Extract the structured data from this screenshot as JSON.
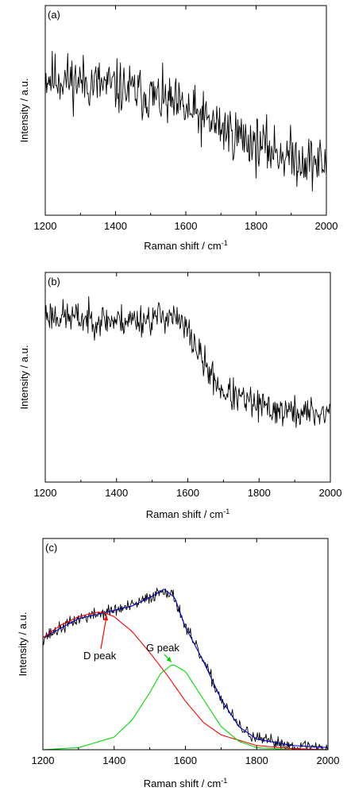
{
  "chart_data": [
    {
      "type": "line",
      "panel_label": "(a)",
      "xlabel": "Raman shift / cm",
      "xlabel_sup": "-1",
      "ylabel": "Intensity / a.u.",
      "xlim": [
        1200,
        2000
      ],
      "ylim": [
        0,
        1
      ],
      "xticks": [
        1200,
        1400,
        1600,
        1800,
        2000
      ],
      "tick_labels": [
        "1200",
        "1400",
        "1600",
        "1800",
        "2000"
      ],
      "series": [
        {
          "color": "#000000",
          "noise": 0.09,
          "seed": 11,
          "x": [
            1200,
            1300,
            1400,
            1500,
            1600,
            1700,
            1800,
            1900,
            2000
          ],
          "y": [
            0.66,
            0.64,
            0.61,
            0.57,
            0.5,
            0.42,
            0.34,
            0.28,
            0.24
          ]
        }
      ]
    },
    {
      "type": "line",
      "panel_label": "(b)",
      "xlabel": "Raman shift / cm",
      "xlabel_sup": "-1",
      "ylabel": "Intensity / a.u.",
      "xlim": [
        1200,
        2000
      ],
      "ylim": [
        0,
        1
      ],
      "xticks": [
        1200,
        1400,
        1600,
        1800,
        2000
      ],
      "tick_labels": [
        "1200",
        "1400",
        "1600",
        "1800",
        "2000"
      ],
      "series": [
        {
          "color": "#000000",
          "noise": 0.055,
          "seed": 23,
          "x": [
            1200,
            1300,
            1400,
            1500,
            1550,
            1600,
            1650,
            1700,
            1800,
            1900,
            2000
          ],
          "y": [
            0.8,
            0.78,
            0.77,
            0.78,
            0.8,
            0.72,
            0.55,
            0.43,
            0.36,
            0.33,
            0.33
          ]
        }
      ]
    },
    {
      "type": "line",
      "panel_label": "(c)",
      "xlabel": "Raman shift / cm",
      "xlabel_sup": "-1",
      "ylabel": "Intensity / a.u.",
      "xlim": [
        1200,
        2000
      ],
      "ylim": [
        0,
        1
      ],
      "xticks": [
        1200,
        1400,
        1600,
        1800,
        2000
      ],
      "tick_labels": [
        "1200",
        "1400",
        "1600",
        "1800",
        "2000"
      ],
      "series": [
        {
          "color": "#000000",
          "noise": 0.022,
          "seed": 37,
          "x": [
            1200,
            1300,
            1400,
            1450,
            1500,
            1540,
            1570,
            1600,
            1650,
            1700,
            1750,
            1800,
            1900,
            2000
          ],
          "y": [
            0.53,
            0.62,
            0.66,
            0.68,
            0.72,
            0.76,
            0.72,
            0.58,
            0.42,
            0.24,
            0.11,
            0.05,
            0.02,
            0.01
          ]
        },
        {
          "color": "#0000cc",
          "noise": 0,
          "x": [
            1200,
            1300,
            1400,
            1450,
            1500,
            1540,
            1570,
            1600,
            1650,
            1700,
            1750,
            1800,
            1900,
            2000
          ],
          "y": [
            0.53,
            0.62,
            0.66,
            0.68,
            0.72,
            0.76,
            0.72,
            0.58,
            0.42,
            0.24,
            0.11,
            0.05,
            0.02,
            0.01
          ]
        },
        {
          "color": "#ff0000",
          "noise": 0,
          "x": [
            1200,
            1250,
            1300,
            1350,
            1370,
            1400,
            1450,
            1500,
            1550,
            1600,
            1650,
            1700,
            1800,
            1900,
            2000
          ],
          "y": [
            0.53,
            0.59,
            0.63,
            0.65,
            0.65,
            0.63,
            0.56,
            0.46,
            0.35,
            0.23,
            0.13,
            0.07,
            0.02,
            0.005,
            0.0
          ]
        },
        {
          "color": "#00dd00",
          "noise": 0,
          "x": [
            1200,
            1300,
            1400,
            1450,
            1500,
            1530,
            1560,
            1570,
            1600,
            1650,
            1700,
            1750,
            1800,
            1900,
            2000
          ],
          "y": [
            0.0,
            0.01,
            0.06,
            0.14,
            0.27,
            0.36,
            0.4,
            0.4,
            0.37,
            0.24,
            0.11,
            0.04,
            0.01,
            0.0,
            0.0
          ]
        }
      ],
      "annotations": [
        {
          "text": "D peak",
          "x": 1370,
          "y": 0.65,
          "color": "#ff0000"
        },
        {
          "text": "G peak",
          "x": 1565,
          "y": 0.4,
          "color": "#00cc00"
        }
      ]
    }
  ]
}
